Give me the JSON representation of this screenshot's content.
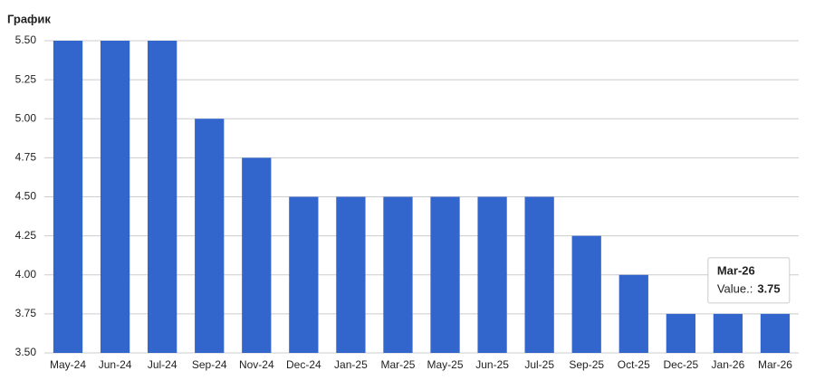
{
  "chart_data": {
    "type": "bar",
    "title": "График",
    "categories": [
      "May-24",
      "Jun-24",
      "Jul-24",
      "Sep-24",
      "Nov-24",
      "Dec-24",
      "Jan-25",
      "Mar-25",
      "May-25",
      "Jun-25",
      "Jul-25",
      "Sep-25",
      "Oct-25",
      "Dec-25",
      "Jan-26",
      "Mar-26"
    ],
    "values": [
      5.5,
      5.5,
      5.5,
      5.0,
      4.75,
      4.5,
      4.5,
      4.5,
      4.5,
      4.5,
      4.5,
      4.25,
      4.0,
      3.75,
      3.75,
      3.75
    ],
    "color": "#3366cc",
    "ylim": [
      3.5,
      5.5
    ],
    "yticks": [
      {
        "value": 3.5,
        "label": "3.50"
      },
      {
        "value": 3.75,
        "label": "3.75"
      },
      {
        "value": 4.0,
        "label": "4.00"
      },
      {
        "value": 4.25,
        "label": "4.25"
      },
      {
        "value": 4.5,
        "label": "4.50"
      },
      {
        "value": 4.75,
        "label": "4.75"
      },
      {
        "value": 5.0,
        "label": "5.00"
      },
      {
        "value": 5.25,
        "label": "5.25"
      },
      {
        "value": 5.5,
        "label": "5.50"
      }
    ],
    "grid": true,
    "tooltip": {
      "title": "Mar-26",
      "label": "Value.:",
      "value": "3.75"
    }
  }
}
